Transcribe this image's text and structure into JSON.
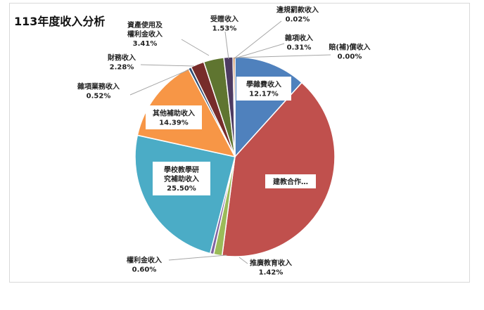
{
  "chart_data": {
    "type": "pie",
    "title": "113年度收入分析",
    "slices": [
      {
        "label": "學雜費收入",
        "value": 12.17,
        "value_text": "12.17%",
        "color": "#4f81bd"
      },
      {
        "label": "建教合作…",
        "value": 42.11,
        "value_text": "",
        "color": "#c0504d"
      },
      {
        "label": "推廣教育收入",
        "value": 1.42,
        "value_text": "1.42%",
        "color": "#9bbb59"
      },
      {
        "label": "權利金收入",
        "value": 0.6,
        "value_text": "0.60%",
        "color": "#8064a2"
      },
      {
        "label": "學校教學研究補助收入",
        "value": 25.5,
        "value_text": "25.50%",
        "color": "#4bacc6"
      },
      {
        "label": "其他補助收入",
        "value": 14.39,
        "value_text": "14.39%",
        "color": "#f79646"
      },
      {
        "label": "雜項業務收入",
        "value": 0.52,
        "value_text": "0.52%",
        "color": "#2c4d75"
      },
      {
        "label": "財務收入",
        "value": 2.28,
        "value_text": "2.28%",
        "color": "#772c2a"
      },
      {
        "label": "資產使用及權利金收入",
        "value": 3.41,
        "value_text": "3.41%",
        "color": "#5f7530"
      },
      {
        "label": "受贈收入",
        "value": 1.53,
        "value_text": "1.53%",
        "color": "#4d3b62"
      },
      {
        "label": "違規罰款收入",
        "value": 0.02,
        "value_text": "0.02%",
        "color": "#276a7c"
      },
      {
        "label": "雜項收入",
        "value": 0.31,
        "value_text": "0.31%",
        "color": "#b65708"
      },
      {
        "label": "賠(補)償收入",
        "value": 0.0,
        "value_text": "0.00%",
        "color": "#729aca"
      }
    ],
    "legend": "none"
  }
}
